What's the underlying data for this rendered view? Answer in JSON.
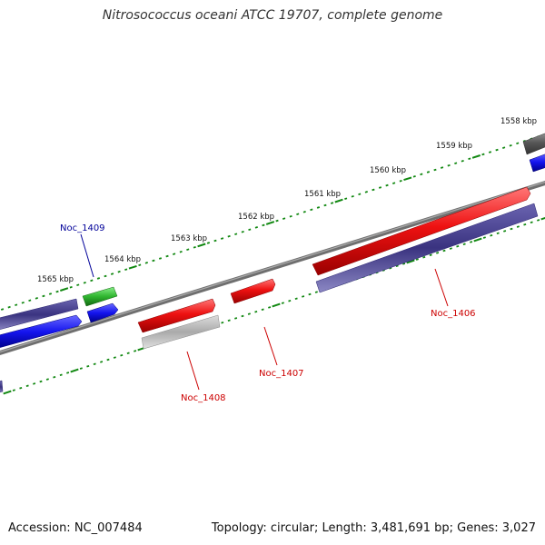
{
  "title": "Nitrosococcus oceani ATCC 19707, complete genome",
  "footer": {
    "accession": "Accession: NC_007484",
    "stats": "Topology: circular; Length: 3,481,691 bp; Genes: 3,027"
  },
  "ticks": [
    "1558 kbp",
    "1559 kbp",
    "1560 kbp",
    "1561 kbp",
    "1562 kbp",
    "1563 kbp",
    "1564 kbp",
    "1565 kbp"
  ],
  "genes": {
    "noc_1406": "Noc_1406",
    "noc_1407": "Noc_1407",
    "noc_1408": "Noc_1408",
    "noc_1409": "Noc_1409"
  },
  "colors": {
    "red": "#ee1111",
    "navy": "#3a3380",
    "blue": "#1414ee",
    "green": "#2fb52f",
    "gray": "#aaaaaa",
    "darkgray": "#555555",
    "tick_green": "#118811",
    "label_red": "#cc0000",
    "label_blue": "#000099"
  }
}
